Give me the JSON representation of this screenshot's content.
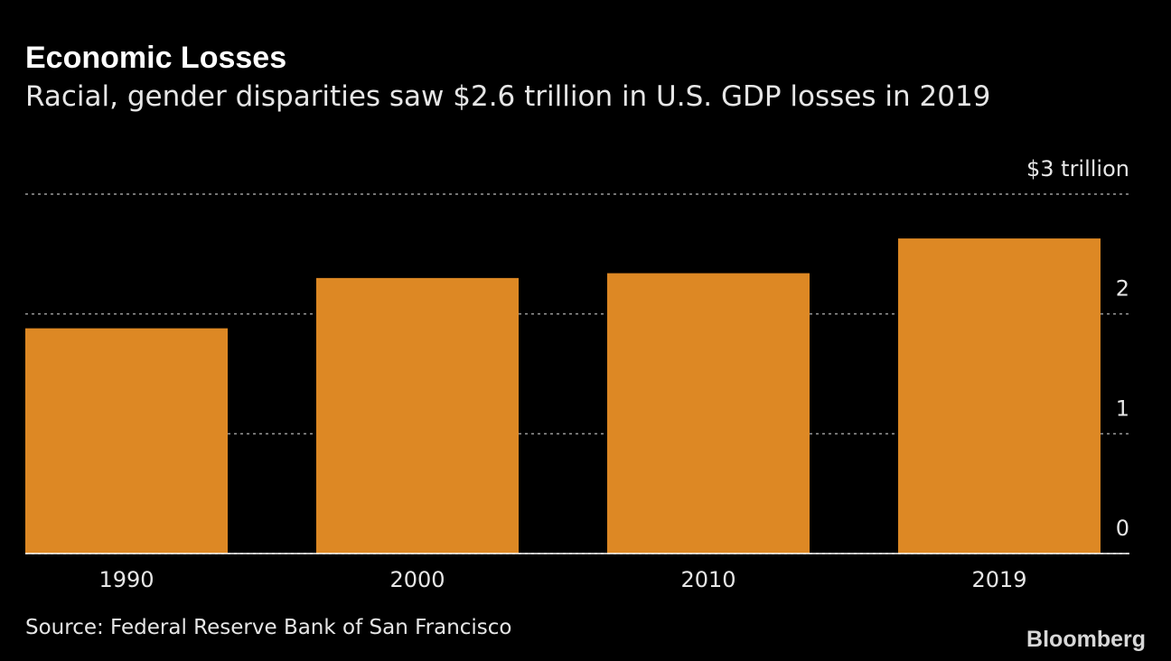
{
  "chart_data": {
    "type": "bar",
    "title": "Economic Losses",
    "subtitle": "Racial, gender disparities saw $2.6 trillion in U.S. GDP losses in 2019",
    "categories": [
      "1990",
      "2000",
      "2010",
      "2019"
    ],
    "values": [
      1.88,
      2.3,
      2.34,
      2.63
    ],
    "color": "#dd8824",
    "ylim": [
      0,
      3
    ],
    "yticks": [
      0,
      1,
      2,
      {
        "value": 3,
        "label": "$3 trillion"
      }
    ],
    "grid": true,
    "source": "Source: Federal Reserve Bank of San Francisco",
    "brand": "Bloomberg"
  }
}
